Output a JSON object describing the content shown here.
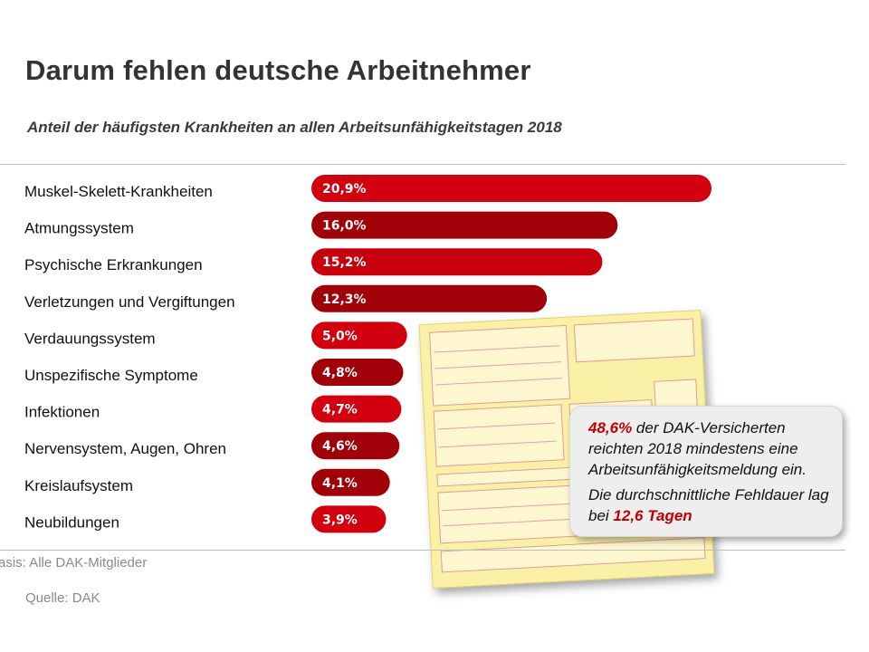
{
  "header": {
    "title": "Darum fehlen deutsche Arbeitnehmer",
    "subtitle": "Anteil der häufigsten Krankheiten an allen Arbeitsunfähigkeitstagen 2018"
  },
  "chart_data": {
    "type": "bar",
    "orientation": "horizontal",
    "categories": [
      "Muskel-Skelett-Krankheiten",
      "Atmungssystem",
      "Psychische Erkrankungen",
      "Verletzungen und Vergiftungen",
      "Verdauungssystem",
      "Unspezifische Symptome",
      "Infektionen",
      "Nervensystem, Augen, Ohren",
      "Kreislaufsystem",
      "Neubildungen"
    ],
    "values": [
      20.9,
      16.0,
      15.2,
      12.3,
      5.0,
      4.8,
      4.7,
      4.6,
      4.1,
      3.9
    ],
    "value_labels": [
      "20,9%",
      "16,0%",
      "15,2%",
      "12,3%",
      "5,0%",
      "4,8%",
      "4,7%",
      "4,6%",
      "4,1%",
      "3,9%"
    ],
    "bar_colors": [
      "#d2000f",
      "#a00008",
      "#c6000d",
      "#a00008",
      "#d2000f",
      "#a00008",
      "#d2000f",
      "#a00008",
      "#a00008",
      "#d2000f"
    ],
    "xlim": [
      0,
      21
    ],
    "title": "Darum fehlen deutsche Arbeitnehmer",
    "subtitle": "Anteil der häufigsten Krankheiten an allen Arbeitsunfähigkeitstagen 2018",
    "xlabel": "",
    "ylabel": "",
    "grid": false,
    "legend": "none"
  },
  "callout": {
    "line1_highlight": "48,6%",
    "line1_rest": " der DAK-Versicherten reichten 2018 mindestens eine Arbeitsunfähigkeitsmeldung ein.",
    "line2_prefix": "Die durchschnittliche Fehldauer lag bei ",
    "line2_highlight": "12,6 Tagen"
  },
  "footer": {
    "basis": "Basis: Alle DAK-Mitglieder",
    "source": "Quelle: DAK"
  },
  "colors": {
    "accent": "#c00000",
    "bar_light": "#d2000f",
    "bar_dark": "#a00008"
  }
}
